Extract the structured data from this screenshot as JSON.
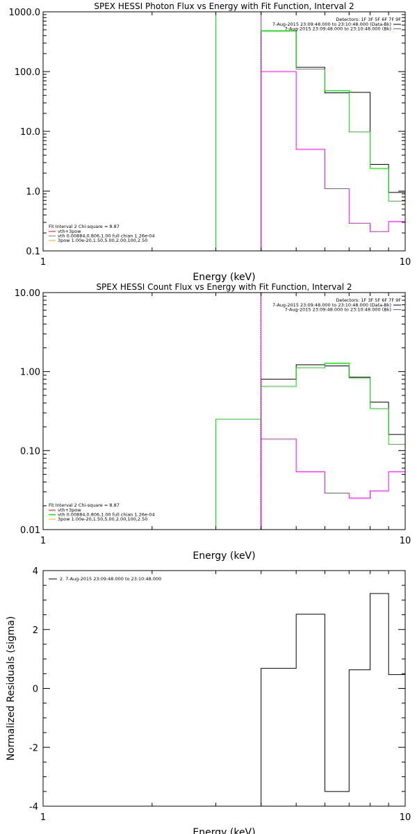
{
  "chart_data": [
    {
      "type": "line",
      "title": "SPEX HESSI Photon Flux vs Energy with Fit Function, Interval 2",
      "xlabel": "Energy (keV)",
      "ylabel": "",
      "xscale": "log",
      "yscale": "log",
      "xlim": [
        1,
        10
      ],
      "ylim": [
        0.1,
        1000
      ],
      "xticks": [
        "1",
        "10"
      ],
      "yticks": [
        "0.1",
        "1.0",
        "10.0",
        "100.0",
        "1000.0"
      ],
      "legend_top": {
        "header": "Detectors: 1F 3F 5F 6F 7F 9F",
        "entries": [
          {
            "label": "7-Aug-2015 23:09:48.000 to 23:10:48.000 (Data-Bk)",
            "color": "#000000"
          },
          {
            "label": "7-Aug-2015 23:09:48.000 to 23:10:48.000 (Bk)",
            "color": "#ff00ff"
          }
        ]
      },
      "legend_bottom": {
        "header": "Fit Interval 2   Chi-square = 8.87",
        "entries": [
          {
            "label": "vth+3pow",
            "color": "#ff0000"
          },
          {
            "label": "vth 0.00884,0.806,1.00  full chian 1.26e-04",
            "color": "#00dd00"
          },
          {
            "label": "3pow 1.00e-20,1.50,5.00,2.00,100,2.50",
            "color": "#ffaa00"
          }
        ]
      },
      "vline_x": 4.0,
      "series": [
        {
          "name": "Data-Bk",
          "color": "#000000",
          "edges": [
            4.0,
            5.0,
            6.0,
            7.0,
            8.0,
            9.0,
            10.0
          ],
          "values": [
            480,
            118,
            44,
            45,
            2.8,
            0.95
          ]
        },
        {
          "name": "vth 0.00884,0.806,1.00  full chian 1.26e-04",
          "color": "#00dd00",
          "edges": [
            3.0,
            4.0,
            5.0,
            6.0,
            7.0,
            8.0,
            9.0,
            10.0
          ],
          "values": [
            1000,
            480,
            110,
            48,
            9.8,
            2.4,
            0.68
          ]
        },
        {
          "name": "Bk",
          "color": "#ff00ff",
          "edges": [
            4.0,
            5.0,
            6.0,
            7.0,
            8.0,
            9.0,
            10.0
          ],
          "values": [
            100,
            5.0,
            1.1,
            0.29,
            0.21,
            0.31
          ]
        }
      ]
    },
    {
      "type": "line",
      "title": "SPEX HESSI Count Flux vs Energy with Fit Function, Interval 2",
      "xlabel": "Energy (keV)",
      "ylabel": "",
      "xscale": "log",
      "yscale": "log",
      "xlim": [
        1,
        10
      ],
      "ylim": [
        0.01,
        10
      ],
      "xticks": [
        "1",
        "10"
      ],
      "yticks": [
        "0.01",
        "0.10",
        "1.00",
        "10.00"
      ],
      "legend_top": {
        "header": "Detectors: 1F 3F 5F 6F 7F 9F",
        "entries": [
          {
            "label": "7-Aug-2015 23:09:48.000 to 23:10:48.000 (Data-Bk)",
            "color": "#000000"
          },
          {
            "label": "7-Aug-2015 23:09:48.000 to 23:10:48.000 (Bk)",
            "color": "#ff00ff"
          }
        ]
      },
      "legend_bottom": {
        "header": "Fit Interval 2   Chi-square = 8.87",
        "entries": [
          {
            "label": "vth+3pow",
            "color": "#ff0000"
          },
          {
            "label": "vth 0.00884,0.806,1.00  full chian 1.26e-04",
            "color": "#00dd00"
          },
          {
            "label": "3pow 1.00e-20,1.50,5.00,2.00,100,2.50",
            "color": "#ffaa00"
          }
        ]
      },
      "vline_x": 4.0,
      "dotted_x": 4.0,
      "series": [
        {
          "name": "Data-Bk",
          "color": "#000000",
          "edges": [
            4.0,
            5.0,
            6.0,
            7.0,
            8.0,
            9.0,
            10.0
          ],
          "values": [
            0.8,
            1.22,
            1.18,
            0.85,
            0.41,
            0.16
          ]
        },
        {
          "name": "vth 0.00884,0.806,1.00  full chian 1.26e-04",
          "color": "#00dd00",
          "edges": [
            3.0,
            4.0,
            5.0,
            6.0,
            7.0,
            8.0,
            9.0,
            10.0
          ],
          "values": [
            0.25,
            0.65,
            1.12,
            1.28,
            0.83,
            0.34,
            0.12
          ]
        },
        {
          "name": "Bk",
          "color": "#ff00ff",
          "edges": [
            4.0,
            5.0,
            6.0,
            7.0,
            8.0,
            9.0,
            10.0
          ],
          "values": [
            0.14,
            0.054,
            0.029,
            0.025,
            0.031,
            0.054
          ]
        }
      ]
    },
    {
      "type": "line",
      "title": "",
      "xlabel": "Energy (keV)",
      "ylabel": "Normalized Residuals (sigma)",
      "xscale": "log",
      "yscale": "linear",
      "xlim": [
        1,
        10
      ],
      "ylim": [
        -4,
        4
      ],
      "xticks": [
        "1",
        "10"
      ],
      "yticks": [
        "-4",
        "-2",
        "0",
        "2",
        "4"
      ],
      "legend_top": {
        "header": "",
        "entries": [
          {
            "label": "2.  7-Aug-2015 23:09:48.000 to 23:10:48.000",
            "color": "#000000"
          }
        ]
      },
      "series": [
        {
          "name": "2.  7-Aug-2015 23:09:48.000 to 23:10:48.000",
          "color": "#000000",
          "edges": [
            4.0,
            5.0,
            6.0,
            7.0,
            8.0,
            9.0,
            10.0
          ],
          "values": [
            0.68,
            2.52,
            -3.5,
            0.63,
            3.22,
            0.47
          ]
        }
      ]
    }
  ]
}
